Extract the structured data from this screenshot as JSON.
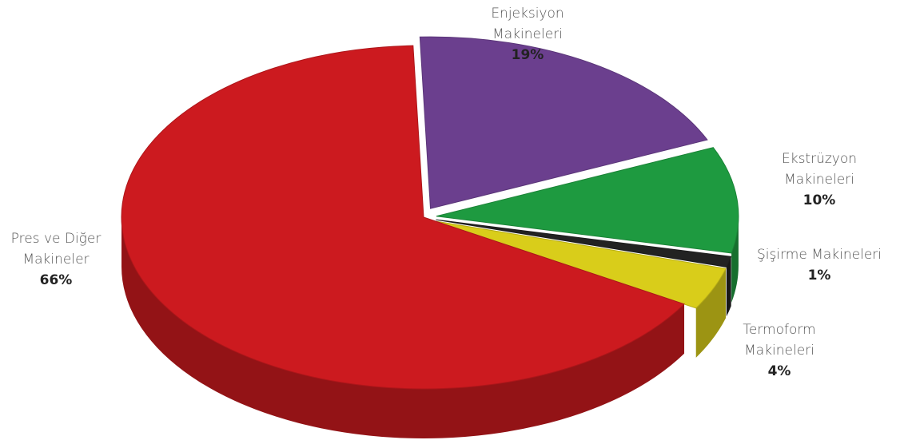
{
  "chart_data": {
    "type": "pie",
    "categories": [
      "Enjeksiyon Makineleri",
      "Ekstrüzyon Makineleri",
      "Şişirme Makineleri",
      "Termoform Makineleri",
      "Pres ve Diğer Makineler"
    ],
    "values": [
      19,
      10,
      1,
      4,
      66
    ],
    "value_labels": [
      "19%",
      "10%",
      "1%",
      "4%",
      "66%"
    ],
    "colors": [
      "#6b3f8e",
      "#1e9a40",
      "#222222",
      "#d9cd1a",
      "#cc1a1f"
    ]
  }
}
